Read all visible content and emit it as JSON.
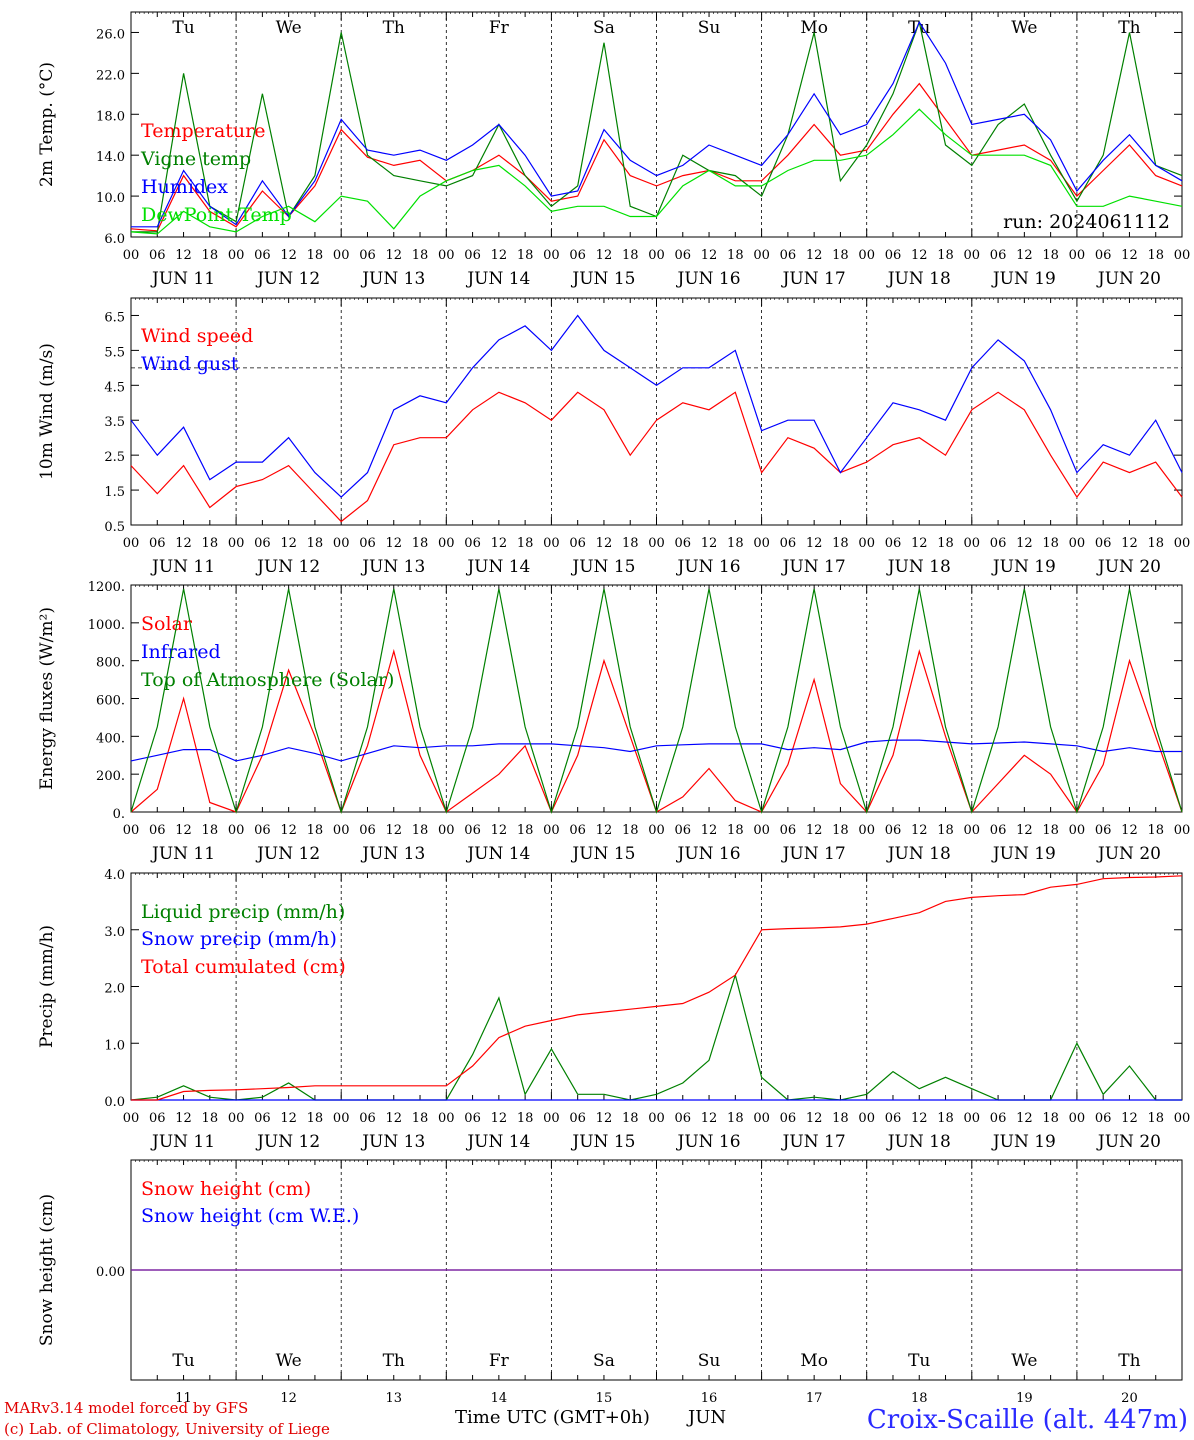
{
  "chart_data": [
    {
      "type": "line",
      "ylabel": "2m Temp. (°C)",
      "ylim": [
        6,
        28
      ],
      "yticks": [
        "6.0",
        "10.0",
        "14.0",
        "18.0",
        "22.0",
        "26.0"
      ],
      "weekdays": [
        {
          "label": "Tu",
          "color": "#000000"
        },
        {
          "label": "We",
          "color": "#000000"
        },
        {
          "label": "Th",
          "color": "#000000"
        },
        {
          "label": "Fr",
          "color": "#000000"
        },
        {
          "label": "Sa",
          "color": "#e00000"
        },
        {
          "label": "Su",
          "color": "#e00000"
        },
        {
          "label": "Mo",
          "color": "#000000"
        },
        {
          "label": "Tu",
          "color": "#000000"
        },
        {
          "label": "We",
          "color": "#000000"
        },
        {
          "label": "Th",
          "color": "#000000"
        }
      ],
      "annotation": "run: 2024061112",
      "x_hours": [
        0,
        6,
        12,
        18,
        24,
        30,
        36,
        42,
        48,
        54,
        60,
        66,
        72,
        78,
        84,
        90,
        96,
        102,
        108,
        114,
        120,
        126,
        132,
        138,
        144,
        150,
        156,
        162,
        168,
        174,
        180,
        186,
        192,
        198,
        204,
        210,
        216,
        222,
        228,
        234,
        240
      ],
      "series": [
        {
          "name": "Temperature",
          "color": "#ff0000",
          "values": [
            6.8,
            6.6,
            12.0,
            8.5,
            7.0,
            10.5,
            8.0,
            11.0,
            16.5,
            13.8,
            13.0,
            13.5,
            11.5,
            12.5,
            14.0,
            12.0,
            9.5,
            10.0,
            15.5,
            12.0,
            11.0,
            12.0,
            12.5,
            11.5,
            11.5,
            14.0,
            17.0,
            14.0,
            14.5,
            18.0,
            21.0,
            17.5,
            14.0,
            14.5,
            15.0,
            13.5,
            10.0,
            12.5,
            15.0,
            12.0,
            11.0
          ]
        },
        {
          "name": "Vigne temp",
          "color": "#008000",
          "values": [
            6.5,
            6.5,
            22.0,
            9.0,
            7.5,
            20.0,
            8.0,
            12.0,
            26.0,
            14.0,
            12.0,
            11.5,
            11.0,
            12.0,
            17.0,
            12.0,
            9.0,
            11.0,
            25.0,
            9.0,
            8.0,
            14.0,
            12.5,
            12.0,
            10.0,
            16.0,
            26.0,
            11.5,
            15.0,
            20.0,
            27.0,
            15.0,
            13.0,
            17.0,
            19.0,
            14.0,
            9.5,
            14.0,
            26.0,
            13.0,
            12.0
          ]
        },
        {
          "name": "Humidex",
          "color": "#0000ff",
          "values": [
            7.0,
            7.0,
            12.5,
            9.0,
            7.2,
            11.5,
            8.0,
            11.5,
            17.5,
            14.5,
            14.0,
            14.5,
            13.5,
            15.0,
            17.0,
            14.0,
            10.0,
            10.5,
            16.5,
            13.5,
            12.0,
            13.0,
            15.0,
            14.0,
            13.0,
            16.0,
            20.0,
            16.0,
            17.0,
            21.0,
            27.0,
            23.0,
            17.0,
            17.5,
            18.0,
            15.5,
            10.5,
            13.5,
            16.0,
            13.0,
            11.5
          ]
        },
        {
          "name": "DewPoint Temp",
          "color": "#00e000",
          "values": [
            6.5,
            6.3,
            8.5,
            7.0,
            6.5,
            8.0,
            9.0,
            7.5,
            10.0,
            9.5,
            6.8,
            10.0,
            11.5,
            12.5,
            13.0,
            11.0,
            8.5,
            9.0,
            9.0,
            8.0,
            8.0,
            11.0,
            12.5,
            11.0,
            11.0,
            12.5,
            13.5,
            13.5,
            14.0,
            16.0,
            18.5,
            16.0,
            14.0,
            14.0,
            14.0,
            13.0,
            9.0,
            9.0,
            10.0,
            9.5,
            9.0
          ]
        }
      ]
    },
    {
      "type": "line",
      "ylabel": "10m Wind (m/s)",
      "ylim": [
        0.5,
        7.0
      ],
      "yticks": [
        "0.5",
        "1.5",
        "2.5",
        "3.5",
        "4.5",
        "5.5",
        "6.5"
      ],
      "reference_line": 5.0,
      "x_hours": [
        0,
        6,
        12,
        18,
        24,
        30,
        36,
        42,
        48,
        54,
        60,
        66,
        72,
        78,
        84,
        90,
        96,
        102,
        108,
        114,
        120,
        126,
        132,
        138,
        144,
        150,
        156,
        162,
        168,
        174,
        180,
        186,
        192,
        198,
        204,
        210,
        216,
        222,
        228,
        234,
        240
      ],
      "series": [
        {
          "name": "Wind speed",
          "color": "#ff0000",
          "values": [
            2.2,
            1.4,
            2.2,
            1.0,
            1.6,
            1.8,
            2.2,
            1.4,
            0.6,
            1.2,
            2.8,
            3.0,
            3.0,
            3.8,
            4.3,
            4.0,
            3.5,
            4.3,
            3.8,
            2.5,
            3.5,
            4.0,
            3.8,
            4.3,
            2.0,
            3.0,
            2.7,
            2.0,
            2.3,
            2.8,
            3.0,
            2.5,
            3.8,
            4.3,
            3.8,
            2.5,
            1.3,
            2.3,
            2.0,
            2.3,
            1.3
          ]
        },
        {
          "name": "Wind gust",
          "color": "#0000ff",
          "values": [
            3.5,
            2.5,
            3.3,
            1.8,
            2.3,
            2.3,
            3.0,
            2.0,
            1.3,
            2.0,
            3.8,
            4.2,
            4.0,
            5.0,
            5.8,
            6.2,
            5.5,
            6.5,
            5.5,
            5.0,
            4.5,
            5.0,
            5.0,
            5.5,
            3.2,
            3.5,
            3.5,
            2.0,
            3.0,
            4.0,
            3.8,
            3.5,
            5.0,
            5.8,
            5.2,
            3.8,
            2.0,
            2.8,
            2.5,
            3.5,
            2.0
          ]
        }
      ]
    },
    {
      "type": "line",
      "ylabel": "Energy fluxes (W/m²)",
      "ylim": [
        0,
        1200
      ],
      "yticks": [
        "0.",
        "200.",
        "400.",
        "600.",
        "800.",
        "1000.",
        "1200."
      ],
      "x_hours": [
        0,
        6,
        12,
        18,
        24,
        30,
        36,
        42,
        48,
        54,
        60,
        66,
        72,
        78,
        84,
        90,
        96,
        102,
        108,
        114,
        120,
        126,
        132,
        138,
        144,
        150,
        156,
        162,
        168,
        174,
        180,
        186,
        192,
        198,
        204,
        210,
        216,
        222,
        228,
        234,
        240
      ],
      "series": [
        {
          "name": "Solar",
          "color": "#ff0000",
          "values": [
            0,
            120,
            600,
            50,
            0,
            300,
            750,
            400,
            0,
            350,
            850,
            300,
            0,
            100,
            200,
            350,
            0,
            300,
            800,
            400,
            0,
            80,
            230,
            60,
            0,
            250,
            700,
            150,
            0,
            300,
            850,
            400,
            0,
            150,
            300,
            200,
            0,
            250,
            800,
            400,
            0
          ]
        },
        {
          "name": "Infrared",
          "color": "#0000ff",
          "values": [
            270,
            300,
            330,
            330,
            270,
            300,
            340,
            310,
            270,
            310,
            350,
            340,
            350,
            350,
            360,
            360,
            360,
            350,
            340,
            320,
            350,
            355,
            360,
            360,
            360,
            330,
            340,
            330,
            370,
            380,
            380,
            370,
            360,
            365,
            370,
            360,
            350,
            320,
            340,
            320,
            320
          ]
        },
        {
          "name": "Top of Atmosphere (Solar)",
          "color": "#008000",
          "values": [
            0,
            450,
            1180,
            450,
            0,
            450,
            1180,
            450,
            0,
            450,
            1180,
            450,
            0,
            450,
            1180,
            450,
            0,
            450,
            1180,
            450,
            0,
            450,
            1180,
            450,
            0,
            450,
            1180,
            450,
            0,
            450,
            1180,
            450,
            0,
            450,
            1180,
            450,
            0,
            450,
            1180,
            450,
            0
          ]
        }
      ]
    },
    {
      "type": "line",
      "ylabel": "Precip (mm/h)",
      "ylim": [
        0,
        4
      ],
      "yticks": [
        "0.0",
        "1.0",
        "2.0",
        "3.0",
        "4.0"
      ],
      "x_hours": [
        0,
        6,
        12,
        18,
        24,
        30,
        36,
        42,
        48,
        54,
        60,
        66,
        72,
        78,
        84,
        90,
        96,
        102,
        108,
        114,
        120,
        126,
        132,
        138,
        144,
        150,
        156,
        162,
        168,
        174,
        180,
        186,
        192,
        198,
        204,
        210,
        216,
        222,
        228,
        234,
        240
      ],
      "series": [
        {
          "name": "Liquid precip (mm/h)",
          "color": "#008000",
          "values": [
            0,
            0.05,
            0.25,
            0.05,
            0,
            0.05,
            0.3,
            0,
            0,
            0,
            0,
            0,
            0,
            0.8,
            1.8,
            0.1,
            0.9,
            0.1,
            0.1,
            0,
            0.1,
            0.3,
            0.7,
            2.2,
            0.4,
            0,
            0.05,
            0,
            0.1,
            0.5,
            0.2,
            0.4,
            0.2,
            0,
            0,
            0,
            1.0,
            0.1,
            0.6,
            0,
            0
          ]
        },
        {
          "name": "Snow precip (mm/h)",
          "color": "#0000ff",
          "values": [
            0,
            0,
            0,
            0,
            0,
            0,
            0,
            0,
            0,
            0,
            0,
            0,
            0,
            0,
            0,
            0,
            0,
            0,
            0,
            0,
            0,
            0,
            0,
            0,
            0,
            0,
            0,
            0,
            0,
            0,
            0,
            0,
            0,
            0,
            0,
            0,
            0,
            0,
            0,
            0,
            0
          ]
        },
        {
          "name": "Total cumulated (cm)",
          "color": "#ff0000",
          "values": [
            0,
            0,
            0.15,
            0.17,
            0.18,
            0.2,
            0.22,
            0.25,
            0.25,
            0.25,
            0.25,
            0.25,
            0.25,
            0.6,
            1.1,
            1.3,
            1.4,
            1.5,
            1.55,
            1.6,
            1.65,
            1.7,
            1.9,
            2.2,
            3.0,
            3.02,
            3.03,
            3.05,
            3.1,
            3.2,
            3.3,
            3.5,
            3.57,
            3.6,
            3.62,
            3.75,
            3.8,
            3.9,
            3.92,
            3.93,
            3.95
          ]
        }
      ]
    },
    {
      "type": "line",
      "ylabel": "Snow height (cm)",
      "ylim": [
        -1,
        1
      ],
      "yticks": [
        "0.00"
      ],
      "series": [
        {
          "name": "Snow height (cm)",
          "color": "#ff0000",
          "values": [
            0,
            0
          ]
        },
        {
          "name": "Snow height (cm W.E.)",
          "color": "#0000ff",
          "values": [
            0,
            0
          ]
        }
      ],
      "weekdays": [
        {
          "label": "Tu",
          "color": "#000000"
        },
        {
          "label": "We",
          "color": "#000000"
        },
        {
          "label": "Th",
          "color": "#000000"
        },
        {
          "label": "Fr",
          "color": "#000000"
        },
        {
          "label": "Sa",
          "color": "#e00000"
        },
        {
          "label": "Su",
          "color": "#e00000"
        },
        {
          "label": "Mo",
          "color": "#000000"
        },
        {
          "label": "Tu",
          "color": "#000000"
        },
        {
          "label": "We",
          "color": "#000000"
        },
        {
          "label": "Th",
          "color": "#000000"
        }
      ],
      "day_numbers": [
        "11",
        "12",
        "13",
        "14",
        "15",
        "16",
        "17",
        "18",
        "19",
        "20"
      ]
    }
  ],
  "axis": {
    "hour_labels": [
      "00",
      "06",
      "12",
      "18"
    ],
    "final_label": "00",
    "date_labels": [
      "JUN 11",
      "JUN 12",
      "JUN 13",
      "JUN 14",
      "JUN 15",
      "JUN 16",
      "JUN 17",
      "JUN 18",
      "JUN 19",
      "JUN 20"
    ]
  },
  "footer": {
    "model": "MARv3.14 model forced by GFS",
    "credit": "(c) Lab. of Climatology, University of Liege",
    "time_label": "Time UTC (GMT+0h)",
    "month_label": "JUN",
    "station": "Croix-Scaille (alt. 447m)"
  }
}
